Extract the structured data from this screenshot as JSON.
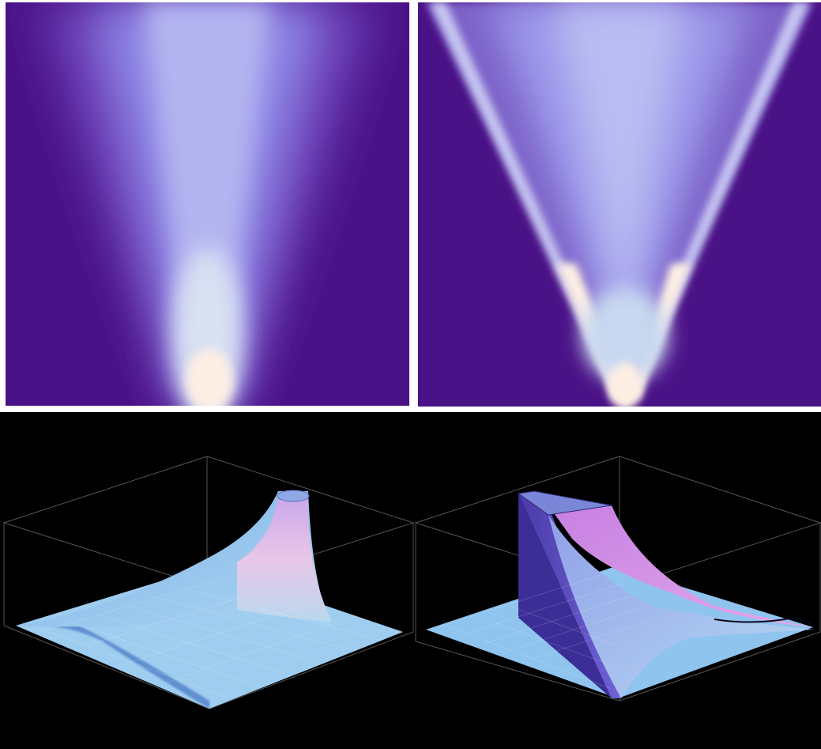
{
  "panels": [
    {
      "id": "density-smooth",
      "kind": "heatmap"
    },
    {
      "id": "density-cone",
      "kind": "heatmap"
    },
    {
      "id": "surface-smooth",
      "kind": "3d-surface"
    },
    {
      "id": "surface-cone",
      "kind": "3d-surface"
    }
  ],
  "colors": {
    "background_purple": "#4a1287",
    "mid_violet": "#8f88e6",
    "pale_lavender": "#c6c6f2",
    "hot_cream": "#fdeee4",
    "surface_blue": "#8fc4ee",
    "surface_pink": "#e9b7e6",
    "surface_magenta": "#c77fe2",
    "wall_violet": "#5b4fc3",
    "black": "#000000",
    "box_line": "#555555"
  }
}
